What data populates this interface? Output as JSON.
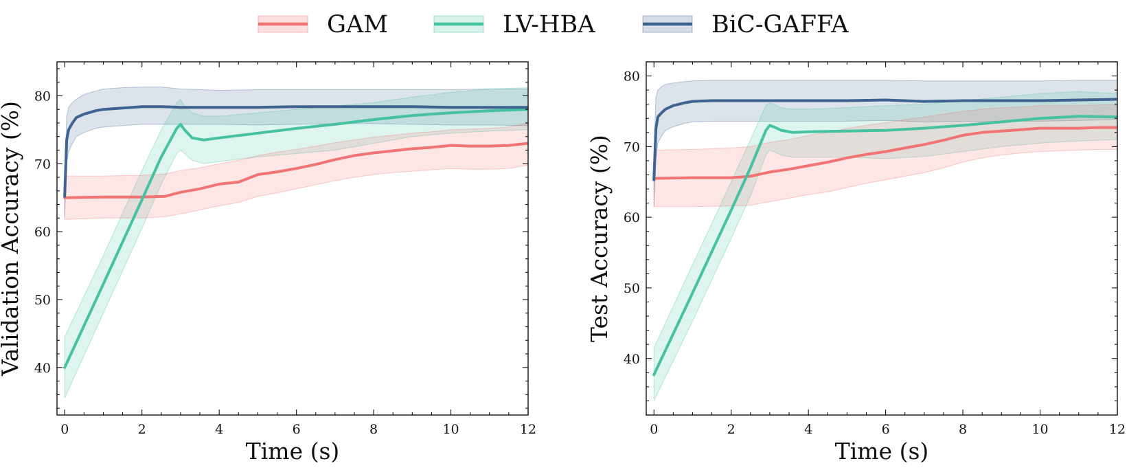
{
  "legend": [
    {
      "name": "GAM",
      "color": "#f07474"
    },
    {
      "name": "LV-HBA",
      "color": "#46c2a2"
    },
    {
      "name": "BiC-GAFFA",
      "color": "#3e6391"
    }
  ],
  "chart_data": [
    {
      "type": "line",
      "id": "validation",
      "xlabel": "Time (s)",
      "ylabel": "Validation Accuracy (%)",
      "xlim": [
        -0.2,
        12
      ],
      "ylim": [
        33,
        85
      ],
      "xticks": [
        0,
        2,
        4,
        6,
        8,
        10,
        12
      ],
      "yticks": [
        40,
        50,
        60,
        70,
        80
      ],
      "series": [
        {
          "name": "BiC-GAFFA",
          "x": [
            0,
            0.05,
            0.1,
            0.2,
            0.3,
            0.5,
            0.8,
            1,
            1.5,
            2,
            2.5,
            3,
            4,
            5,
            6,
            7,
            8,
            9,
            10,
            11,
            12
          ],
          "y": [
            65.2,
            73.5,
            75.0,
            76.0,
            76.8,
            77.3,
            77.8,
            78.0,
            78.2,
            78.4,
            78.4,
            78.3,
            78.3,
            78.3,
            78.4,
            78.4,
            78.4,
            78.4,
            78.3,
            78.3,
            78.3
          ],
          "upper": [
            68.0,
            77.0,
            78.3,
            79.0,
            79.5,
            80.2,
            80.7,
            81.0,
            81.2,
            81.3,
            81.3,
            81.0,
            80.8,
            80.9,
            80.9,
            80.9,
            80.9,
            80.9,
            80.9,
            81.0,
            81.0
          ],
          "lower": [
            62.0,
            70.0,
            71.8,
            73.0,
            74.0,
            74.6,
            75.2,
            75.4,
            75.6,
            75.8,
            75.8,
            75.8,
            75.8,
            75.7,
            75.8,
            75.9,
            75.9,
            75.8,
            75.7,
            75.7,
            75.6
          ]
        },
        {
          "name": "LV-HBA",
          "x": [
            0,
            1,
            2,
            2.5,
            2.9,
            3.0,
            3.1,
            3.3,
            3.6,
            4,
            5,
            6,
            7,
            8,
            9,
            10,
            11,
            12
          ],
          "y": [
            40.0,
            52.3,
            64.7,
            71.0,
            75.2,
            75.8,
            75.0,
            73.8,
            73.5,
            73.8,
            74.5,
            75.2,
            75.8,
            76.5,
            77.1,
            77.5,
            77.8,
            78.0
          ],
          "upper": [
            44.5,
            56.5,
            69.0,
            75.0,
            79.0,
            79.5,
            78.5,
            77.5,
            77.0,
            77.0,
            77.5,
            78.0,
            78.5,
            79.0,
            79.8,
            80.5,
            81.0,
            81.2
          ],
          "lower": [
            35.5,
            48.0,
            60.5,
            67.0,
            71.5,
            72.0,
            71.5,
            70.5,
            70.0,
            70.3,
            71.0,
            71.5,
            72.0,
            73.0,
            74.0,
            74.5,
            74.8,
            75.0
          ]
        },
        {
          "name": "GAM",
          "x": [
            0,
            1,
            2,
            2.6,
            3,
            3.5,
            4,
            4.5,
            5,
            5.5,
            6,
            6.5,
            7,
            7.5,
            8,
            8.5,
            9,
            9.5,
            10,
            10.5,
            11,
            11.5,
            12
          ],
          "y": [
            65.0,
            65.1,
            65.1,
            65.2,
            65.8,
            66.3,
            67.0,
            67.3,
            68.4,
            68.8,
            69.3,
            69.9,
            70.6,
            71.2,
            71.6,
            71.9,
            72.2,
            72.4,
            72.7,
            72.6,
            72.6,
            72.7,
            73.0
          ],
          "upper": [
            68.2,
            68.2,
            68.3,
            68.5,
            69.0,
            69.4,
            70.0,
            70.5,
            71.2,
            71.7,
            72.1,
            72.6,
            73.1,
            73.5,
            73.9,
            74.2,
            74.5,
            74.7,
            75.0,
            75.1,
            75.2,
            75.4,
            76.0
          ],
          "lower": [
            61.8,
            62.0,
            62.0,
            62.2,
            62.6,
            63.2,
            63.8,
            64.3,
            65.2,
            65.7,
            66.3,
            66.9,
            67.5,
            68.0,
            68.4,
            68.7,
            68.9,
            69.1,
            69.3,
            69.2,
            69.2,
            69.3,
            69.8
          ]
        }
      ]
    },
    {
      "type": "line",
      "id": "test",
      "xlabel": "Time (s)",
      "ylabel": "Test Accuracy (%)",
      "xlim": [
        -0.2,
        12
      ],
      "ylim": [
        32,
        82
      ],
      "xticks": [
        0,
        2,
        4,
        6,
        8,
        10,
        12
      ],
      "yticks": [
        40,
        50,
        60,
        70,
        80
      ],
      "series": [
        {
          "name": "BiC-GAFFA",
          "x": [
            0,
            0.05,
            0.1,
            0.2,
            0.3,
            0.5,
            0.8,
            1,
            1.5,
            2,
            3,
            4,
            5,
            6,
            7,
            8,
            9,
            10,
            11,
            12
          ],
          "y": [
            65.3,
            72.5,
            74.2,
            74.8,
            75.3,
            75.8,
            76.2,
            76.4,
            76.5,
            76.5,
            76.5,
            76.5,
            76.5,
            76.6,
            76.4,
            76.5,
            76.5,
            76.5,
            76.6,
            76.7
          ],
          "upper": [
            69.0,
            77.0,
            78.0,
            78.5,
            78.8,
            79.0,
            79.2,
            79.3,
            79.4,
            79.4,
            79.4,
            79.4,
            79.4,
            79.4,
            79.3,
            79.3,
            79.3,
            79.3,
            79.4,
            79.4
          ],
          "lower": [
            61.5,
            68.0,
            70.5,
            71.5,
            72.3,
            72.8,
            73.3,
            73.5,
            73.6,
            73.6,
            73.6,
            73.6,
            73.6,
            73.7,
            73.5,
            73.6,
            73.6,
            73.6,
            73.7,
            73.8
          ]
        },
        {
          "name": "LV-HBA",
          "x": [
            0,
            1,
            2,
            2.5,
            2.9,
            3.0,
            3.1,
            3.3,
            3.6,
            4,
            5,
            6,
            7,
            8,
            9,
            10,
            11,
            12
          ],
          "y": [
            37.7,
            49.3,
            61.0,
            67.0,
            72.3,
            73.0,
            72.8,
            72.3,
            72.0,
            72.1,
            72.2,
            72.3,
            72.6,
            73.0,
            73.5,
            74.0,
            74.3,
            74.2
          ],
          "upper": [
            41.5,
            53.3,
            65.0,
            71.0,
            75.8,
            76.2,
            76.0,
            75.5,
            75.3,
            75.3,
            75.5,
            75.8,
            76.0,
            76.5,
            77.0,
            77.5,
            77.8,
            77.5
          ],
          "lower": [
            34.0,
            45.3,
            57.0,
            63.0,
            68.8,
            69.5,
            69.3,
            68.8,
            68.5,
            68.5,
            68.5,
            68.3,
            68.6,
            69.3,
            70.0,
            70.5,
            70.8,
            71.0
          ]
        },
        {
          "name": "GAM",
          "x": [
            0,
            1,
            2,
            2.5,
            3,
            3.5,
            4,
            4.5,
            5,
            5.5,
            6,
            6.5,
            7,
            7.5,
            8,
            8.5,
            9,
            9.5,
            10,
            10.5,
            11,
            11.5,
            12
          ],
          "y": [
            65.5,
            65.6,
            65.6,
            65.8,
            66.4,
            66.8,
            67.3,
            67.8,
            68.4,
            68.9,
            69.3,
            69.8,
            70.3,
            70.9,
            71.6,
            72.0,
            72.2,
            72.4,
            72.6,
            72.6,
            72.6,
            72.7,
            72.7
          ],
          "upper": [
            69.5,
            69.6,
            69.8,
            70.0,
            70.6,
            71.0,
            71.6,
            72.0,
            72.6,
            73.0,
            73.4,
            73.8,
            74.2,
            74.6,
            75.0,
            75.3,
            75.5,
            75.6,
            75.8,
            75.8,
            75.8,
            75.9,
            76.0
          ],
          "lower": [
            61.5,
            61.5,
            61.6,
            61.7,
            62.2,
            62.7,
            63.2,
            63.6,
            64.2,
            64.8,
            65.3,
            65.8,
            66.3,
            67.0,
            67.8,
            68.4,
            68.8,
            69.1,
            69.3,
            69.4,
            69.5,
            69.6,
            69.6
          ]
        }
      ]
    }
  ]
}
